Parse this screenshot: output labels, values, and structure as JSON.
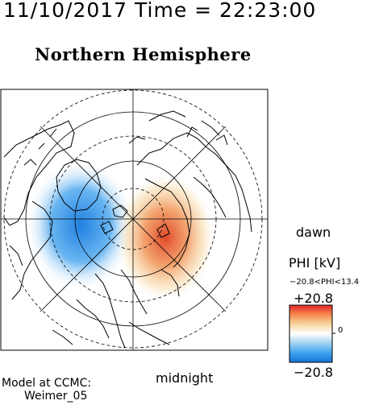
{
  "header": {
    "timestamp": "11/10/2017 Time = 22:23:00",
    "title": "Northern Hemisphere"
  },
  "map": {
    "projection": "polar",
    "grid": "dashed-latitude-circles",
    "potential_cells": [
      {
        "polarity": "negative",
        "color": "#1f7fe0"
      },
      {
        "polarity": "positive",
        "color": "#e04a2a"
      }
    ]
  },
  "orientation_labels": {
    "dawn": "dawn",
    "midnight": "midnight"
  },
  "colorbar": {
    "label": "PHI [kV]",
    "range_text": "−20.8<PHI<13.4",
    "max_label": "+20.8",
    "zero_label": "0",
    "min_label": "−20.8",
    "colors": [
      "#e6242b",
      "#f58a4e",
      "#f6d6a0",
      "#ffffff",
      "#9fd3f2",
      "#3ea3ee",
      "#1772d8"
    ]
  },
  "credit": {
    "line1": "Model at CCMC:",
    "line2": "Weimer_05"
  }
}
